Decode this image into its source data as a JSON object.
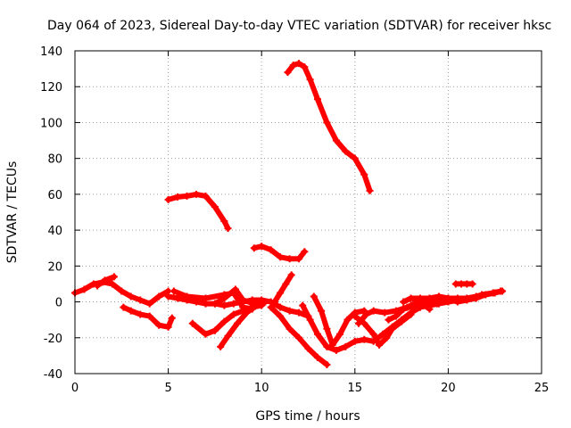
{
  "chart_data": {
    "type": "scatter",
    "title": "Day 064 of 2023, Sidereal Day-to-day VTEC variation (SDTVAR) for receiver hksc",
    "xlabel": "GPS time / hours",
    "ylabel": "SDTVAR / TECUs",
    "xlim": [
      0,
      25
    ],
    "ylim": [
      -40,
      140
    ],
    "xticks": [
      0,
      5,
      10,
      15,
      20,
      25
    ],
    "yticks": [
      -40,
      -20,
      0,
      20,
      40,
      60,
      80,
      100,
      120,
      140
    ],
    "grid": true,
    "marker": "plus",
    "color": "#ff0000",
    "series": [
      {
        "name": "s1",
        "points": [
          [
            0,
            5
          ],
          [
            0.5,
            7
          ],
          [
            1,
            10
          ],
          [
            1.5,
            11
          ],
          [
            2,
            10
          ],
          [
            2.5,
            6
          ],
          [
            3,
            3
          ],
          [
            3.5,
            1
          ],
          [
            4,
            -1
          ],
          [
            4.5,
            3
          ],
          [
            5,
            6
          ]
        ]
      },
      {
        "name": "s2",
        "points": [
          [
            1.2,
            9
          ],
          [
            1.6,
            12
          ],
          [
            2.1,
            14
          ]
        ]
      },
      {
        "name": "s3",
        "points": [
          [
            5,
            3
          ],
          [
            5.5,
            2
          ],
          [
            6,
            1
          ],
          [
            6.5,
            0
          ],
          [
            7,
            -1
          ],
          [
            7.5,
            -1
          ],
          [
            8,
            -2
          ],
          [
            8.5,
            -1
          ],
          [
            9,
            0
          ],
          [
            9.5,
            1
          ],
          [
            10,
            1
          ],
          [
            10.5,
            0
          ],
          [
            11,
            -3
          ],
          [
            11.5,
            -5
          ],
          [
            12,
            -6
          ],
          [
            12.5,
            -8
          ]
        ]
      },
      {
        "name": "s4",
        "points": [
          [
            5,
            57
          ],
          [
            5.5,
            58.5
          ],
          [
            6,
            59
          ],
          [
            6.5,
            60
          ],
          [
            7,
            59
          ],
          [
            7.5,
            53
          ],
          [
            8,
            45
          ],
          [
            8.2,
            41
          ]
        ]
      },
      {
        "name": "s5",
        "points": [
          [
            11.4,
            128
          ],
          [
            11.7,
            132
          ],
          [
            12,
            133
          ],
          [
            12.3,
            131
          ],
          [
            12.6,
            124
          ],
          [
            13,
            113
          ],
          [
            13.5,
            100
          ],
          [
            14,
            90
          ],
          [
            14.5,
            84
          ],
          [
            15,
            80
          ],
          [
            15.5,
            71
          ],
          [
            15.8,
            62
          ]
        ]
      },
      {
        "name": "s6",
        "points": [
          [
            9.6,
            30
          ],
          [
            10,
            31
          ],
          [
            10.5,
            29
          ],
          [
            11,
            25
          ],
          [
            11.5,
            24
          ],
          [
            12,
            24
          ],
          [
            12.3,
            28
          ]
        ]
      },
      {
        "name": "s7",
        "points": [
          [
            10.5,
            -3
          ],
          [
            11,
            -8
          ],
          [
            11.5,
            -15
          ],
          [
            12,
            -20
          ],
          [
            12.5,
            -26
          ],
          [
            13,
            -31
          ],
          [
            13.5,
            -35
          ]
        ]
      },
      {
        "name": "s8",
        "points": [
          [
            2.6,
            -3
          ],
          [
            3,
            -5
          ],
          [
            3.5,
            -7
          ],
          [
            4,
            -8
          ],
          [
            4.5,
            -13
          ],
          [
            5,
            -14
          ],
          [
            5.2,
            -9
          ]
        ]
      },
      {
        "name": "s9",
        "points": [
          [
            6.3,
            -12
          ],
          [
            7,
            -18
          ],
          [
            7.5,
            -16
          ],
          [
            8,
            -11
          ],
          [
            8.5,
            -7
          ],
          [
            9,
            -5
          ],
          [
            9.5,
            -3
          ],
          [
            10,
            -2
          ]
        ]
      },
      {
        "name": "s10",
        "points": [
          [
            7.8,
            -25
          ],
          [
            8.2,
            -19
          ],
          [
            8.7,
            -12
          ],
          [
            9.2,
            -6
          ],
          [
            9.7,
            -2
          ],
          [
            10.2,
            0
          ]
        ]
      },
      {
        "name": "s11",
        "points": [
          [
            5.3,
            6
          ],
          [
            6,
            3
          ],
          [
            7,
            2
          ],
          [
            8,
            4
          ],
          [
            8.5,
            5
          ],
          [
            9,
            -3
          ],
          [
            9.5,
            -4
          ]
        ]
      },
      {
        "name": "s12",
        "points": [
          [
            7.5,
            -1
          ],
          [
            8,
            2
          ],
          [
            8.6,
            7
          ],
          [
            9,
            1
          ],
          [
            9.6,
            -1
          ]
        ]
      },
      {
        "name": "s13",
        "points": [
          [
            10.7,
            0
          ],
          [
            11,
            5
          ],
          [
            11.3,
            10
          ],
          [
            11.6,
            15
          ]
        ]
      },
      {
        "name": "s14",
        "points": [
          [
            12.2,
            -2
          ],
          [
            12.6,
            -10
          ],
          [
            13,
            -18
          ],
          [
            13.5,
            -25
          ],
          [
            14,
            -27
          ],
          [
            14.5,
            -25
          ],
          [
            15,
            -22
          ],
          [
            15.5,
            -21
          ],
          [
            16,
            -22
          ],
          [
            16.5,
            -18
          ],
          [
            17,
            -14
          ],
          [
            17.5,
            -10
          ],
          [
            18,
            -6
          ],
          [
            18.5,
            -3
          ],
          [
            19,
            -2
          ],
          [
            19.5,
            -1
          ],
          [
            20,
            0
          ]
        ]
      },
      {
        "name": "s15",
        "points": [
          [
            12.8,
            3
          ],
          [
            13.2,
            -5
          ],
          [
            13.5,
            -15
          ],
          [
            13.8,
            -24
          ],
          [
            14.2,
            -18
          ],
          [
            14.6,
            -10
          ],
          [
            15,
            -6
          ],
          [
            15.5,
            -5
          ]
        ]
      },
      {
        "name": "s16",
        "points": [
          [
            15,
            -8
          ],
          [
            15.5,
            -12
          ],
          [
            16,
            -18
          ],
          [
            16.3,
            -24
          ],
          [
            16.7,
            -20
          ],
          [
            17,
            -15
          ],
          [
            17.5,
            -11
          ],
          [
            18,
            -7
          ]
        ]
      },
      {
        "name": "s17",
        "points": [
          [
            15.2,
            -12
          ],
          [
            15.6,
            -7
          ],
          [
            16,
            -5
          ],
          [
            16.6,
            -6
          ],
          [
            17.2,
            -5
          ],
          [
            17.8,
            -3
          ],
          [
            18.4,
            0
          ]
        ]
      },
      {
        "name": "s18",
        "points": [
          [
            16.8,
            -10
          ],
          [
            17.2,
            -8
          ],
          [
            17.6,
            -4
          ],
          [
            18,
            -2
          ],
          [
            18.5,
            0
          ],
          [
            19,
            1
          ],
          [
            19.5,
            2
          ],
          [
            20,
            1
          ]
        ]
      },
      {
        "name": "s19",
        "points": [
          [
            17.6,
            -4
          ],
          [
            18.2,
            -2
          ],
          [
            18.8,
            0
          ],
          [
            19.4,
            -1
          ],
          [
            20,
            0
          ],
          [
            20.6,
            1
          ],
          [
            21.2,
            2
          ],
          [
            21.8,
            4
          ],
          [
            22.4,
            5
          ],
          [
            22.8,
            6
          ]
        ]
      },
      {
        "name": "s20",
        "points": [
          [
            17.6,
            0
          ],
          [
            18,
            2
          ],
          [
            18.5,
            2
          ],
          [
            19,
            2
          ],
          [
            19.5,
            3
          ],
          [
            20,
            2
          ],
          [
            20.5,
            2
          ],
          [
            21,
            2
          ],
          [
            21.5,
            3
          ]
        ]
      },
      {
        "name": "s21",
        "points": [
          [
            18.2,
            1
          ],
          [
            18.6,
            -1
          ],
          [
            19,
            -4
          ]
        ]
      },
      {
        "name": "s22",
        "points": [
          [
            20.4,
            10
          ],
          [
            20.7,
            10
          ],
          [
            21,
            10
          ],
          [
            21.3,
            10
          ]
        ]
      },
      {
        "name": "s23",
        "points": [
          [
            20.2,
            1
          ],
          [
            20.5,
            0
          ],
          [
            21,
            1
          ],
          [
            21.5,
            2
          ],
          [
            22,
            4
          ],
          [
            22.5,
            5
          ],
          [
            22.9,
            6
          ]
        ]
      }
    ]
  }
}
